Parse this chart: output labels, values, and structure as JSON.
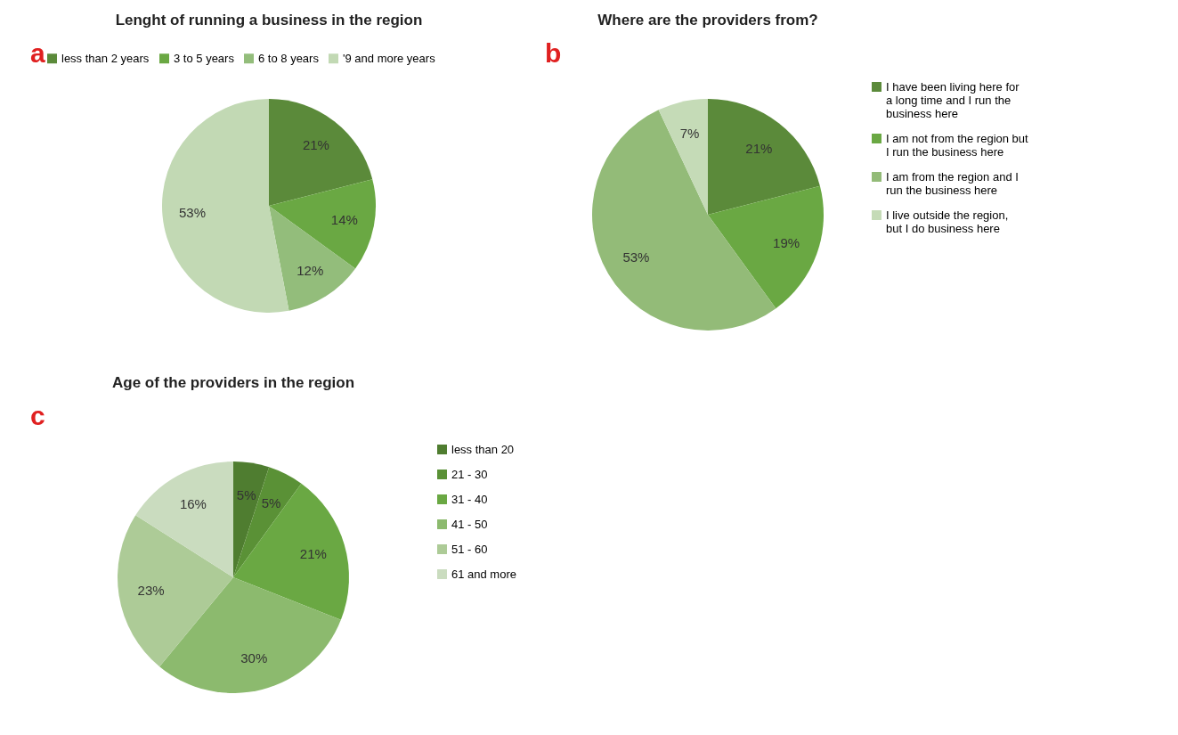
{
  "chart_data": [
    {
      "type": "pie",
      "title": "Lenght of running a business in the region",
      "annotations": [
        "a"
      ],
      "legend": "top",
      "categories": [
        "less than 2 years",
        "3 to 5 years",
        "6 to 8 years",
        "'9 and more years"
      ],
      "values": [
        21,
        14,
        12,
        53
      ],
      "value_labels": [
        "21%",
        "14%",
        "12%",
        "53%"
      ],
      "colors": [
        "#5b8a3a",
        "#6aa843",
        "#93bd7b",
        "#c2d9b4"
      ]
    },
    {
      "type": "pie",
      "title": "Where are the providers from?",
      "annotations": [
        "b"
      ],
      "legend": "right",
      "categories": [
        "I have been living here for a long time and I run the business here",
        "I am not from the region but I run the business here",
        "I am from the region and I run the business here",
        "I live outside the region, but I do business here"
      ],
      "values": [
        21,
        19,
        53,
        7
      ],
      "value_labels": [
        "21%",
        "19%",
        "53%",
        "7%"
      ],
      "colors": [
        "#5b8a3a",
        "#6aa843",
        "#93bb78",
        "#c5dbb7"
      ]
    },
    {
      "type": "pie",
      "title": "Age of the providers in the region",
      "annotations": [
        "c"
      ],
      "legend": "right",
      "categories": [
        "less than 20",
        "21 - 30",
        "31 - 40",
        "41 - 50",
        "51 - 60",
        "61  and more"
      ],
      "values": [
        5,
        5,
        21,
        30,
        23,
        16
      ],
      "value_labels": [
        "5%",
        "5%",
        "21%",
        "30%",
        "23%",
        "16%"
      ],
      "colors": [
        "#4f7d30",
        "#5a9136",
        "#6aa843",
        "#8cba6e",
        "#adcb97",
        "#cadcbf"
      ]
    }
  ]
}
